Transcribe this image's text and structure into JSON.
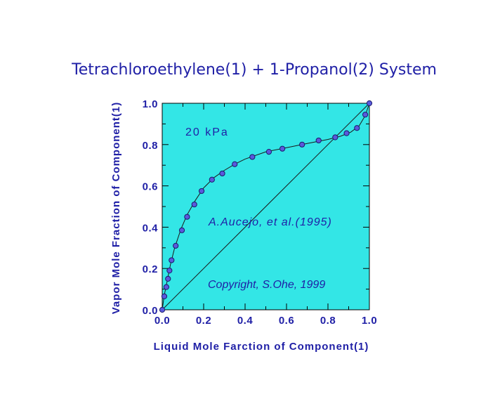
{
  "chart_data": {
    "type": "scatter",
    "title": "Tetrachloroethylene(1) + 1-Propanol(2) System",
    "xlabel": "Liquid Mole Farction of Component(1)",
    "ylabel": "Vapor Mole Fraction of Component(1)",
    "xlim": [
      0,
      1
    ],
    "ylim": [
      0,
      1
    ],
    "xticks": [
      "0.0",
      "0.2",
      "0.4",
      "0.6",
      "0.8",
      "1.0"
    ],
    "yticks": [
      "0.0",
      "0.2",
      "0.4",
      "0.6",
      "0.8",
      "1.0"
    ],
    "annotations": {
      "pressure": "20 kPa",
      "source": "A.Aucejo, et al.(1995)",
      "copyright": "Copyright, S.Ohe, 1999"
    },
    "plot_background": "#33e6e6",
    "marker_color": "#5a5adc",
    "text_color": "#1f1fa6",
    "series": [
      {
        "kind": "points",
        "x": [
          0.0,
          0.01,
          0.02,
          0.028,
          0.035,
          0.045,
          0.065,
          0.095,
          0.12,
          0.155,
          0.19,
          0.24,
          0.29,
          0.35,
          0.435,
          0.515,
          0.58,
          0.675,
          0.755,
          0.835,
          0.89,
          0.94,
          0.98,
          1.0
        ],
        "y": [
          0.0,
          0.065,
          0.11,
          0.15,
          0.19,
          0.24,
          0.31,
          0.385,
          0.45,
          0.51,
          0.575,
          0.63,
          0.66,
          0.705,
          0.74,
          0.765,
          0.78,
          0.8,
          0.82,
          0.835,
          0.855,
          0.88,
          0.945,
          1.0
        ]
      },
      {
        "kind": "fit",
        "x": [
          0.0,
          0.01,
          0.02,
          0.04,
          0.06,
          0.09,
          0.12,
          0.16,
          0.2,
          0.25,
          0.3,
          0.35,
          0.4,
          0.5,
          0.6,
          0.7,
          0.8,
          0.86,
          0.91,
          0.95,
          0.98,
          1.0
        ],
        "y": [
          0.0,
          0.07,
          0.12,
          0.22,
          0.3,
          0.39,
          0.46,
          0.53,
          0.59,
          0.64,
          0.675,
          0.705,
          0.73,
          0.765,
          0.785,
          0.805,
          0.825,
          0.84,
          0.86,
          0.89,
          0.94,
          1.0
        ]
      },
      {
        "kind": "diagonal",
        "x": [
          0.0,
          1.0
        ],
        "y": [
          0.0,
          1.0
        ]
      }
    ]
  }
}
